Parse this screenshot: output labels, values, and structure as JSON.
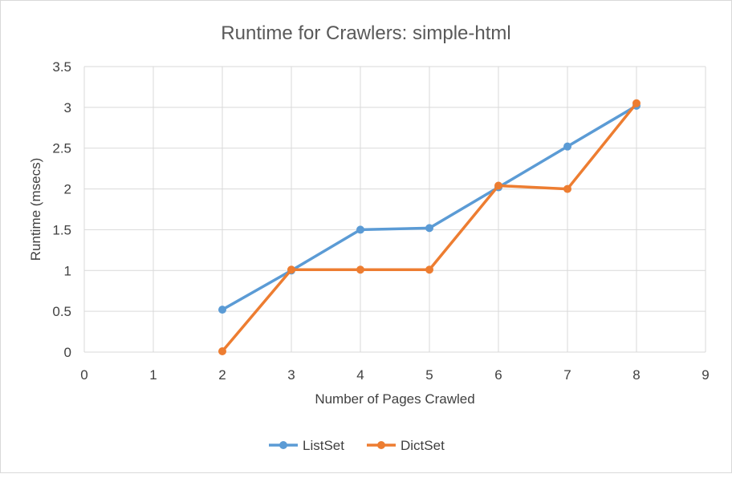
{
  "chart_data": {
    "type": "line",
    "title": "Runtime for Crawlers: simple-html",
    "xlabel": "Number of Pages Crawled",
    "ylabel": "Runtime (msecs)",
    "xlim": [
      0,
      9
    ],
    "ylim": [
      0,
      3.5
    ],
    "x_ticks": [
      "0",
      "1",
      "2",
      "3",
      "4",
      "5",
      "6",
      "7",
      "8",
      "9"
    ],
    "y_ticks": [
      "0",
      "0.5",
      "1",
      "1.5",
      "2",
      "2.5",
      "3",
      "3.5"
    ],
    "grid": true,
    "legend_position": "bottom",
    "series": [
      {
        "name": "ListSet",
        "color": "#5b9bd5",
        "x": [
          2,
          3,
          4,
          5,
          6,
          7,
          8
        ],
        "y": [
          0.52,
          1.0,
          1.5,
          1.52,
          2.02,
          2.52,
          3.02
        ]
      },
      {
        "name": "DictSet",
        "color": "#ed7d31",
        "x": [
          2,
          3,
          4,
          5,
          6,
          7,
          8
        ],
        "y": [
          0.01,
          1.01,
          1.01,
          1.01,
          2.04,
          2.0,
          3.05
        ]
      }
    ]
  }
}
